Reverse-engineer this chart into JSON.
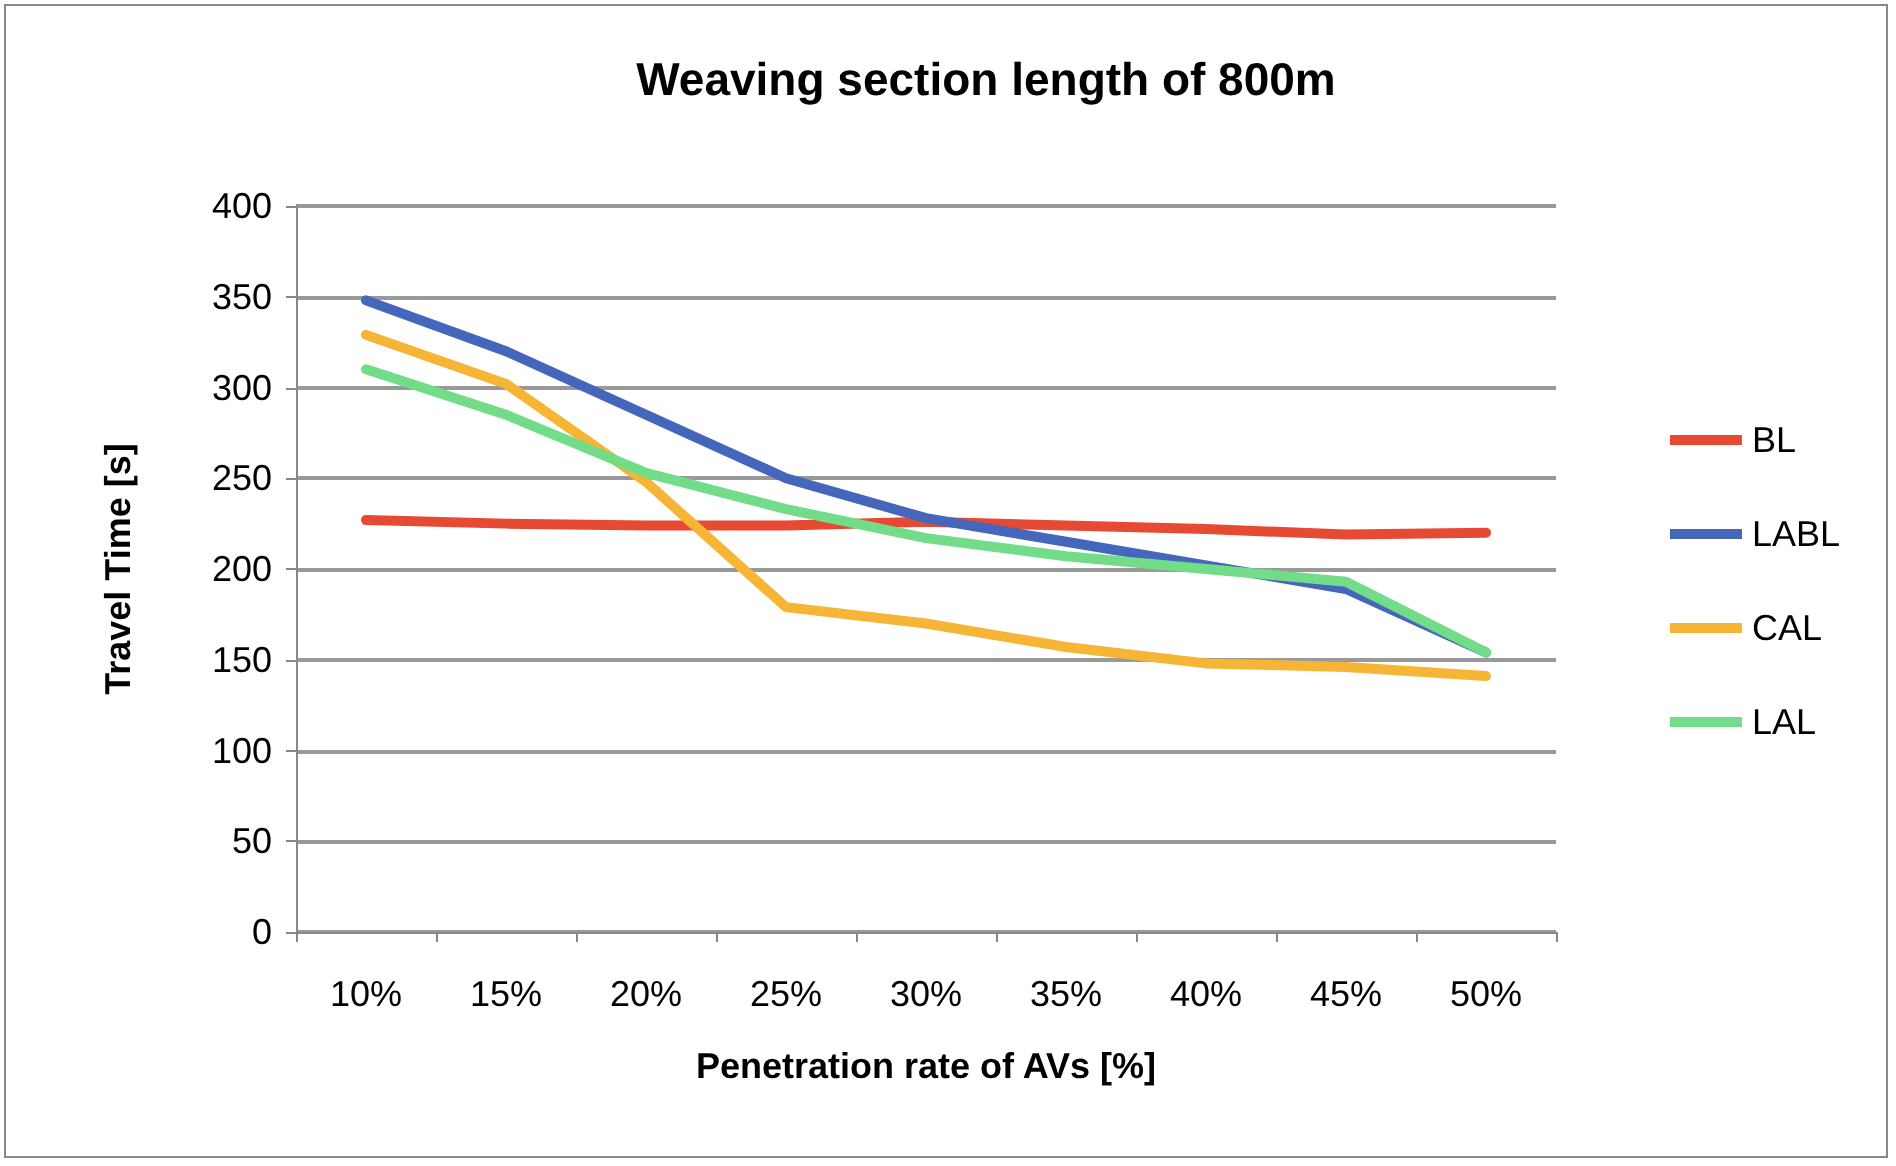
{
  "chart_data": {
    "type": "line",
    "title": "Weaving section length of 800m",
    "xlabel": "Penetration rate of AVs [%]",
    "ylabel": "Travel Time [s]",
    "categories": [
      "10%",
      "15%",
      "20%",
      "25%",
      "30%",
      "35%",
      "40%",
      "45%",
      "50%"
    ],
    "series": [
      {
        "name": "BL",
        "color": "#e64a33",
        "values": [
          227,
          225,
          224,
          224,
          226,
          224,
          222,
          219,
          220
        ]
      },
      {
        "name": "LABL",
        "color": "#4466bb",
        "values": [
          348,
          320,
          285,
          250,
          228,
          215,
          202,
          189,
          154
        ]
      },
      {
        "name": "CAL",
        "color": "#f6b534",
        "values": [
          329,
          302,
          248,
          179,
          170,
          157,
          148,
          146,
          141
        ]
      },
      {
        "name": "LAL",
        "color": "#72dc88",
        "values": [
          310,
          285,
          253,
          233,
          217,
          207,
          200,
          193,
          154
        ]
      }
    ],
    "ylim": [
      0,
      400
    ],
    "yticks": [
      0,
      50,
      100,
      150,
      200,
      250,
      300,
      350,
      400
    ],
    "grid": "y",
    "legend": "right",
    "marker": "none",
    "line_style": "solid"
  }
}
